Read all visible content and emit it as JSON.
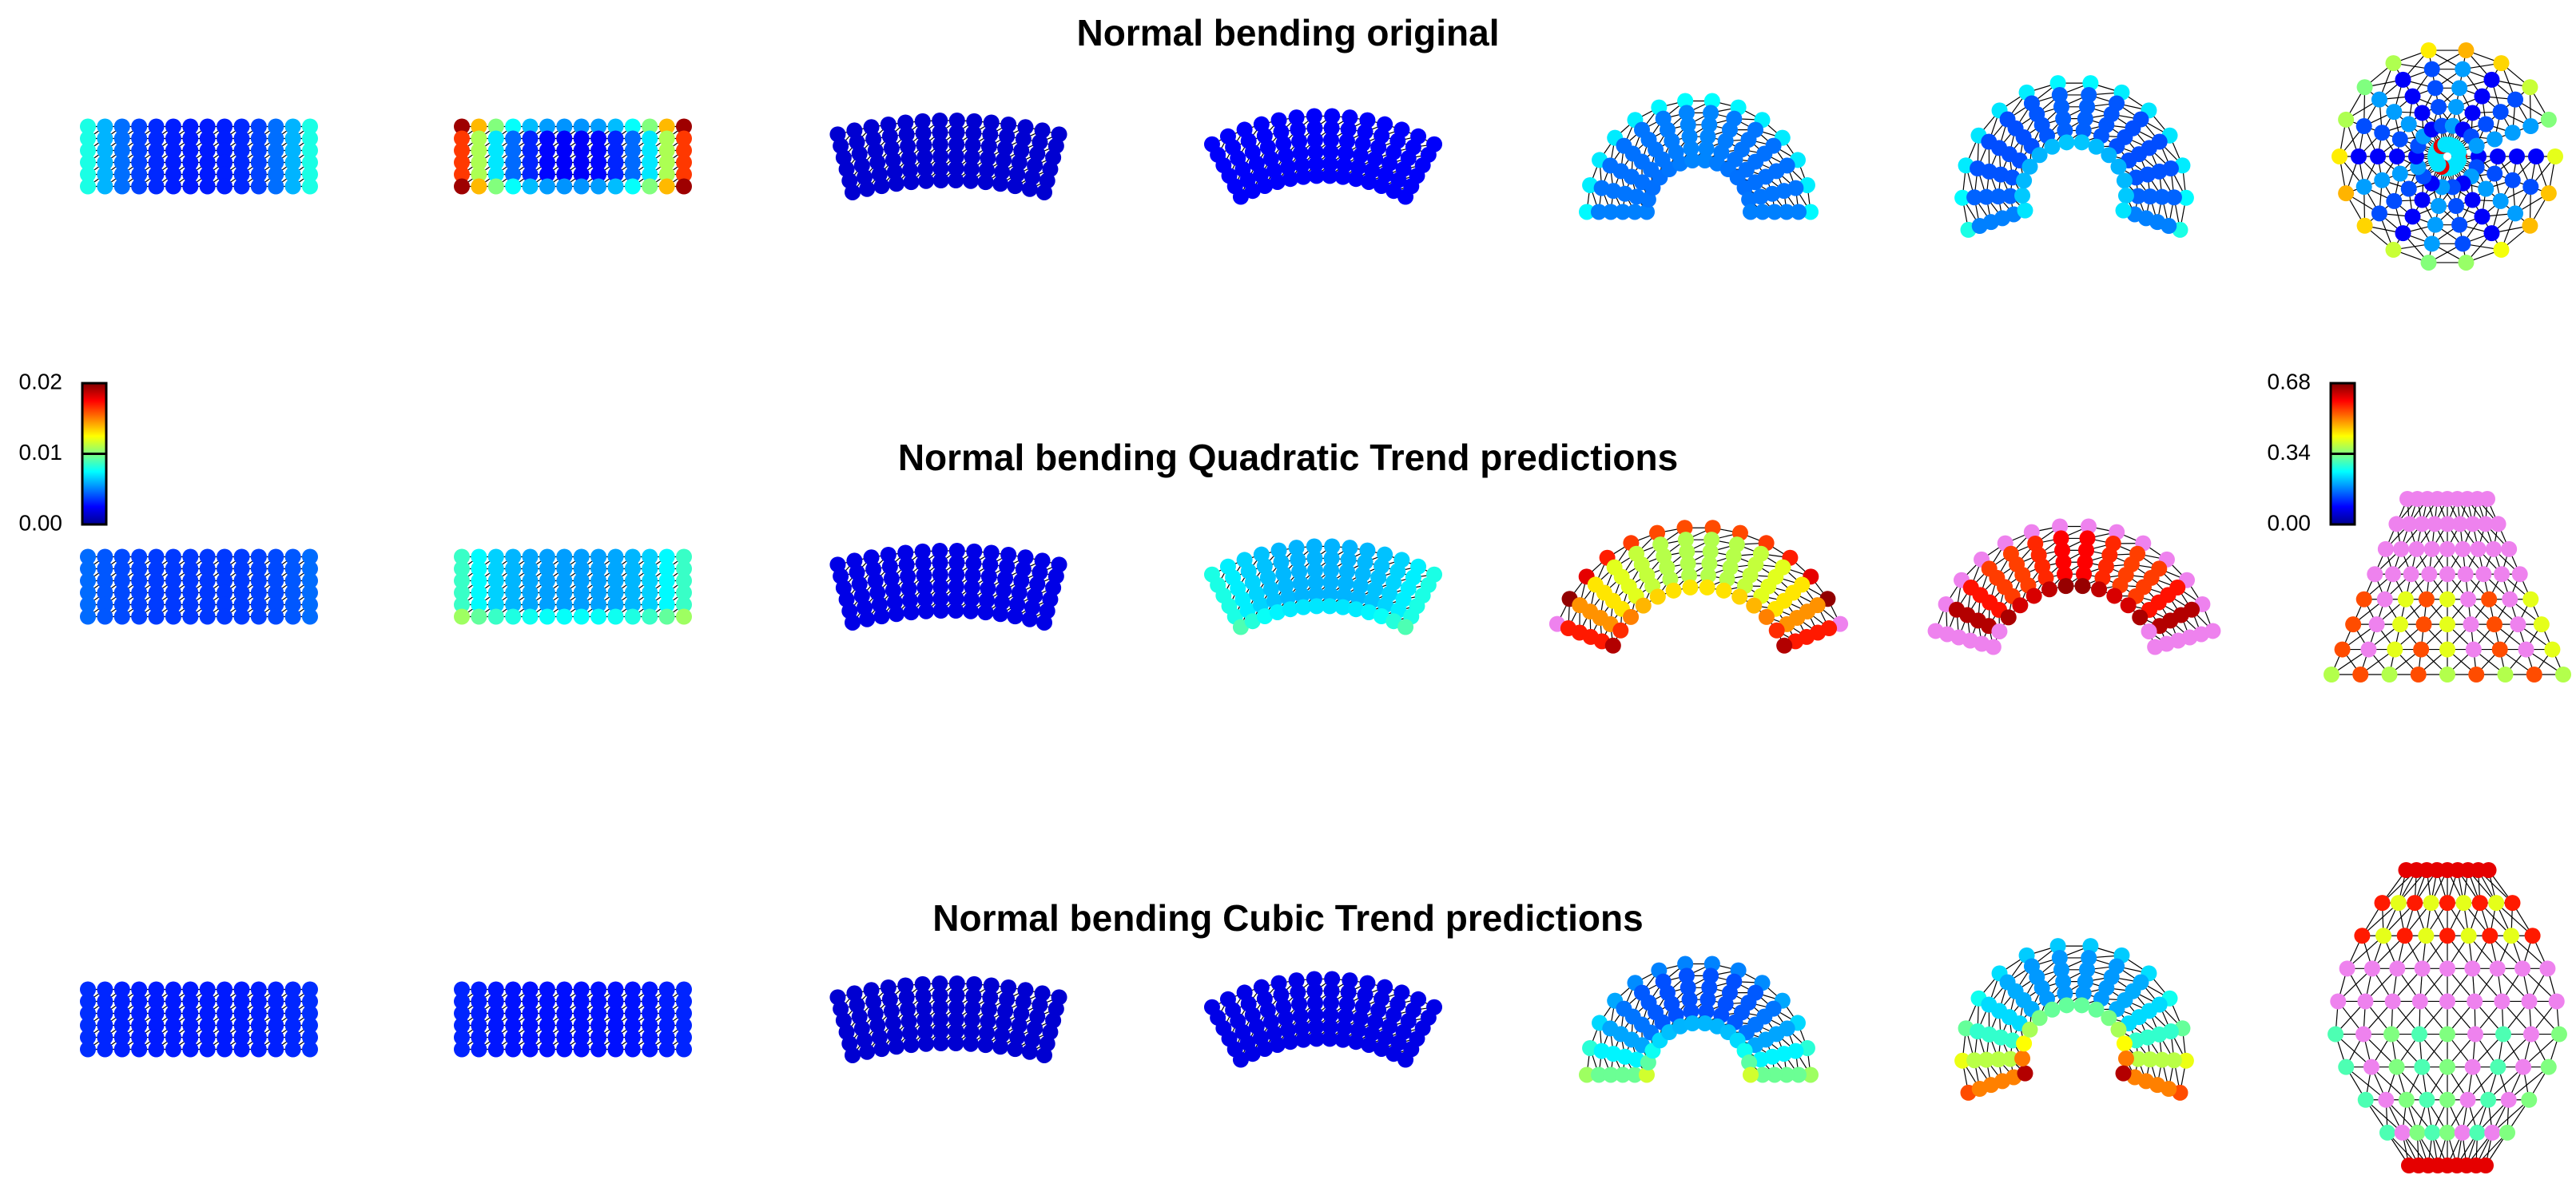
{
  "titles": [
    "Normal bending original",
    "Normal bending Quadratic Trend predictions",
    "Normal bending Cubic Trend predictions"
  ],
  "colorbars": [
    {
      "ticks": [
        {
          "value": 0,
          "label": "0.00"
        },
        0.01,
        0.02
      ]
    },
    {
      "ticks": [
        {
          "value": 0,
          "label": "0.00"
        },
        0.34,
        0.68
      ]
    }
  ]
}
